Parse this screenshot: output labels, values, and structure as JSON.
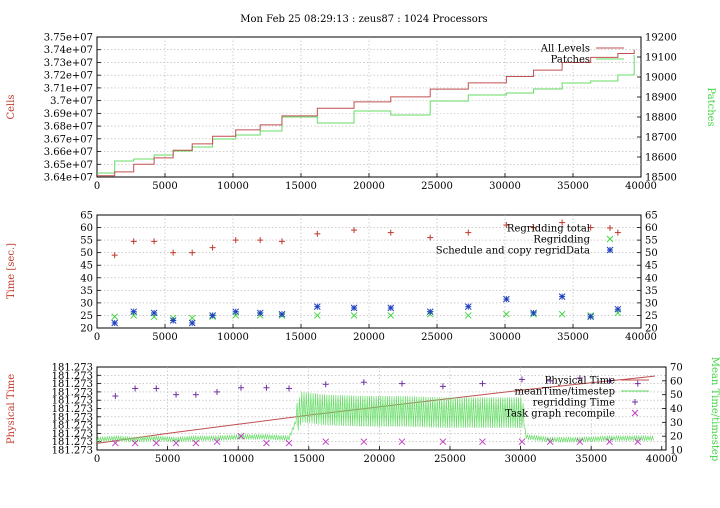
{
  "title": "Mon Feb 25 08:29:13 : zeus87 : 1024 Processors",
  "colors": {
    "red": "#c0392b",
    "green": "#3fd63f",
    "blue": "#1f3fbf",
    "purple": "#7030a0",
    "magenta": "#c040c0",
    "line_red": "#c05050",
    "line_green": "#66dd66"
  },
  "chart_data": [
    {
      "type": "line",
      "ylabel": "Cells",
      "y2label": "Patches",
      "xlim": [
        0,
        40000
      ],
      "ylim": [
        36400000,
        37500000
      ],
      "y2lim": [
        18500,
        19200
      ],
      "x_ticks": [
        "0",
        "5000",
        "10000",
        "15000",
        "20000",
        "25000",
        "30000",
        "35000",
        "40000"
      ],
      "y_ticks": [
        "3.64e+07",
        "3.65e+07",
        "3.66e+07",
        "3.67e+07",
        "3.68e+07",
        "3.69e+07",
        "3.7e+07",
        "3.71e+07",
        "3.72e+07",
        "3.73e+07",
        "3.74e+07",
        "3.75e+07"
      ],
      "y2_ticks": [
        "18500",
        "18600",
        "18700",
        "18800",
        "18900",
        "19000",
        "19100",
        "19200"
      ],
      "series": [
        {
          "name": "All Levels",
          "axis": "y",
          "color": "#c05050",
          "x": [
            0,
            1300,
            2700,
            4200,
            5600,
            7000,
            8500,
            10200,
            12000,
            13600,
            16200,
            18900,
            21600,
            24500,
            27300,
            30100,
            32100,
            34200,
            36300,
            38300,
            39500
          ],
          "y": [
            36410000,
            36440000,
            36500000,
            36550000,
            36610000,
            36660000,
            36720000,
            36770000,
            36810000,
            36880000,
            36940000,
            36990000,
            37030000,
            37090000,
            37140000,
            37190000,
            37240000,
            37300000,
            37340000,
            37370000,
            37400000
          ]
        },
        {
          "name": "Patches",
          "axis": "y2",
          "color": "#66dd66",
          "x": [
            0,
            1300,
            2700,
            4200,
            5600,
            7000,
            8500,
            10200,
            12000,
            13600,
            16200,
            18900,
            21600,
            24500,
            27300,
            30100,
            32100,
            34200,
            36300,
            38300,
            39500
          ],
          "y": [
            18520,
            18580,
            18590,
            18610,
            18630,
            18650,
            18690,
            18710,
            18730,
            18800,
            18770,
            18830,
            18810,
            18880,
            18910,
            18920,
            18940,
            18970,
            18980,
            19010,
            19110
          ]
        }
      ]
    },
    {
      "type": "scatter",
      "ylabel": "Time [sec.]",
      "xlim": [
        0,
        40000
      ],
      "ylim": [
        20,
        65
      ],
      "x_ticks": [
        "0",
        "5000",
        "10000",
        "15000",
        "20000",
        "25000",
        "30000",
        "35000",
        "40000"
      ],
      "y_ticks": [
        "20",
        "25",
        "30",
        "35",
        "40",
        "45",
        "50",
        "55",
        "60",
        "65"
      ],
      "series": [
        {
          "name": "Regridding total",
          "marker": "+",
          "color": "#c0392b",
          "x": [
            1300,
            2700,
            4200,
            5600,
            7000,
            8500,
            10200,
            12000,
            13600,
            16200,
            18900,
            21600,
            24500,
            27300,
            30100,
            32100,
            34200,
            36300,
            38300
          ],
          "y": [
            49,
            54.5,
            54.5,
            50,
            50,
            52,
            55,
            55,
            54.5,
            57.5,
            59,
            58,
            56,
            58,
            61,
            60,
            62,
            60,
            58
          ]
        },
        {
          "name": "Regridding",
          "marker": "x",
          "color": "#3fd63f",
          "x": [
            1300,
            2700,
            4200,
            5600,
            7000,
            8500,
            10200,
            12000,
            13600,
            16200,
            18900,
            21600,
            24500,
            27300,
            30100,
            32100,
            34200,
            36300,
            38300
          ],
          "y": [
            24.5,
            25,
            24.5,
            24,
            24,
            24.5,
            25,
            25,
            25,
            25,
            25,
            25,
            25.5,
            25,
            25.5,
            25.5,
            25.5,
            25,
            26
          ]
        },
        {
          "name": "Schedule and copy regridData",
          "marker": "*",
          "color": "#1f3fbf",
          "x": [
            1300,
            2700,
            4200,
            5600,
            7000,
            8500,
            10200,
            12000,
            13600,
            16200,
            18900,
            21600,
            24500,
            27300,
            30100,
            32100,
            34200,
            36300,
            38300
          ],
          "y": [
            22,
            26.5,
            26,
            23,
            22,
            25,
            26.5,
            26,
            25.5,
            28.5,
            28,
            28,
            26.5,
            28.5,
            31.5,
            26,
            32.5,
            24.5,
            27.5
          ]
        }
      ]
    },
    {
      "type": "line",
      "ylabel": "Physical Time",
      "y2label": "Mean Time/timestep",
      "xlim": [
        0,
        40000
      ],
      "y2lim": [
        10,
        70
      ],
      "x_ticks": [
        "0",
        "5000",
        "10000",
        "15000",
        "20000",
        "25000",
        "30000",
        "35000",
        "40000"
      ],
      "y_ticks": [
        "181.273",
        "181.273",
        "181.273",
        "181.273",
        "181.273",
        "181.273",
        "181.273",
        "181.273",
        "181.273",
        "181.273",
        "181.273"
      ],
      "y2_ticks": [
        "10",
        "20",
        "30",
        "40",
        "50",
        "60",
        "70"
      ],
      "series": [
        {
          "name": "Physical Time",
          "color": "#c05050",
          "x": [
            0,
            5000,
            10000,
            15000,
            20000,
            25000,
            30000,
            35000,
            39500
          ],
          "y": [
            0.08,
            0.2,
            0.31,
            0.42,
            0.52,
            0.62,
            0.72,
            0.81,
            0.89
          ]
        },
        {
          "name": "meanTime/timestep",
          "color": "#66dd66",
          "x": [
            0,
            1300,
            2700,
            4200,
            5600,
            7000,
            8500,
            10200,
            12000,
            13600,
            14500,
            16200,
            18900,
            21600,
            24500,
            27300,
            30100,
            30400,
            32100,
            34200,
            36300,
            38300,
            39500
          ],
          "y": [
            17,
            18,
            17,
            18,
            17,
            18,
            18,
            19,
            19,
            18,
            40,
            38,
            37,
            37,
            36,
            36,
            36,
            19,
            17,
            17,
            18,
            18,
            18
          ]
        },
        {
          "name": "regridding Time",
          "marker": "+",
          "color": "#7030a0",
          "x": [
            1300,
            2700,
            4200,
            5600,
            7000,
            8500,
            10200,
            12000,
            13600,
            16200,
            18900,
            21600,
            24500,
            27300,
            30100,
            32100,
            34200,
            36300,
            38300
          ],
          "y": [
            49,
            54.5,
            54.5,
            50,
            50,
            52,
            55,
            55,
            54.5,
            57.5,
            59,
            58,
            56,
            58,
            61,
            60,
            62,
            60,
            58
          ]
        },
        {
          "name": "Task graph recompile",
          "marker": "x",
          "color": "#c040c0",
          "x": [
            1300,
            2700,
            4200,
            5600,
            7000,
            8500,
            10200,
            12000,
            13600,
            16200,
            18900,
            21600,
            24500,
            27300,
            30100,
            32100,
            34200,
            36300,
            38300
          ],
          "y": [
            15,
            15,
            15,
            15,
            15,
            16,
            20,
            15,
            15,
            16,
            16,
            16,
            16,
            16,
            16,
            16,
            16,
            16,
            16
          ]
        }
      ]
    }
  ]
}
